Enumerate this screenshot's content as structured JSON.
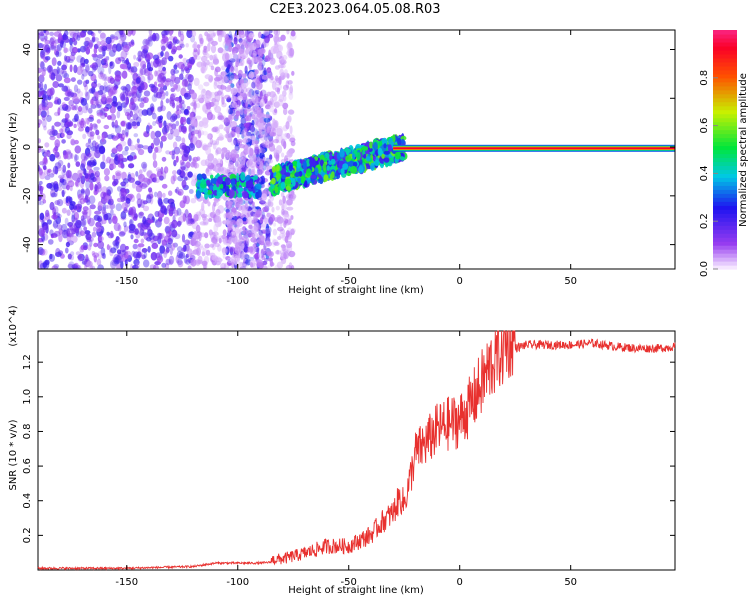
{
  "figure_title": "C2E3.2023.064.05.08.R03",
  "colors": {
    "snr_line": "#e8302e",
    "axis": "#000000",
    "background": "#ffffff"
  },
  "chart_data": [
    {
      "type": "heatmap",
      "name": "spectrogram",
      "title": "",
      "xlabel": "Height of straight line (km)",
      "ylabel": "Frequency (Hz)",
      "xlim": [
        -190,
        97
      ],
      "ylim": [
        -50,
        48
      ],
      "xticks": [
        -150,
        -100,
        -50,
        0,
        50
      ],
      "yticks": [
        -40,
        -20,
        0,
        20,
        40
      ],
      "colorbar": {
        "label": "Normalized spectral amplitude",
        "range": [
          0,
          1
        ],
        "ticks": [
          0.0,
          0.2,
          0.4,
          0.6,
          0.8
        ]
      },
      "regions": [
        {
          "description": "noise",
          "x": [
            -190,
            -120
          ],
          "freq": [
            -50,
            48
          ],
          "amplitude": 0.15
        },
        {
          "description": "noise",
          "x": [
            -105,
            -85
          ],
          "freq": [
            -50,
            48
          ],
          "amplitude": 0.2
        },
        {
          "description": "sparse noise",
          "x": [
            -120,
            -75
          ],
          "freq": [
            -50,
            48
          ],
          "amplitude": 0.05
        },
        {
          "description": "signal cluster",
          "x": [
            -118,
            -90
          ],
          "freq": [
            -20,
            -12
          ],
          "amplitude": 0.35
        },
        {
          "description": "signal band",
          "x": [
            -85,
            -25
          ],
          "freq": [
            -15,
            5
          ],
          "amplitude": 0.4
        },
        {
          "description": "carrier",
          "x": [
            -30,
            97
          ],
          "freq": [
            -2,
            1
          ],
          "amplitude": 0.9
        }
      ]
    },
    {
      "type": "line",
      "name": "snr",
      "title": "",
      "xlabel": "Height of straight line (km)",
      "ylabel": "SNR (10 * v/v)",
      "y_multiplier": "(x10^4)",
      "xlim": [
        -190,
        97
      ],
      "ylim": [
        0,
        1.38
      ],
      "xticks": [
        -150,
        -100,
        -50,
        0,
        50
      ],
      "yticks": [
        0.2,
        0.4,
        0.6,
        0.8,
        1.0,
        1.2
      ],
      "series": [
        {
          "name": "SNR",
          "x": [
            -190,
            -150,
            -120,
            -110,
            -100,
            -90,
            -80,
            -70,
            -60,
            -50,
            -40,
            -35,
            -30,
            -27,
            -25,
            -22,
            -20,
            -15,
            -10,
            -5,
            0,
            5,
            10,
            15,
            20,
            25,
            30,
            40,
            50,
            60,
            70,
            80,
            90,
            97
          ],
          "values": [
            0.01,
            0.01,
            0.02,
            0.04,
            0.04,
            0.04,
            0.05,
            0.08,
            0.12,
            0.12,
            0.18,
            0.25,
            0.3,
            0.38,
            0.35,
            0.5,
            0.62,
            0.68,
            0.75,
            0.78,
            0.8,
            0.88,
            1.0,
            1.12,
            1.2,
            1.28,
            1.3,
            1.3,
            1.3,
            1.31,
            1.29,
            1.28,
            1.28,
            1.29
          ]
        }
      ]
    }
  ]
}
